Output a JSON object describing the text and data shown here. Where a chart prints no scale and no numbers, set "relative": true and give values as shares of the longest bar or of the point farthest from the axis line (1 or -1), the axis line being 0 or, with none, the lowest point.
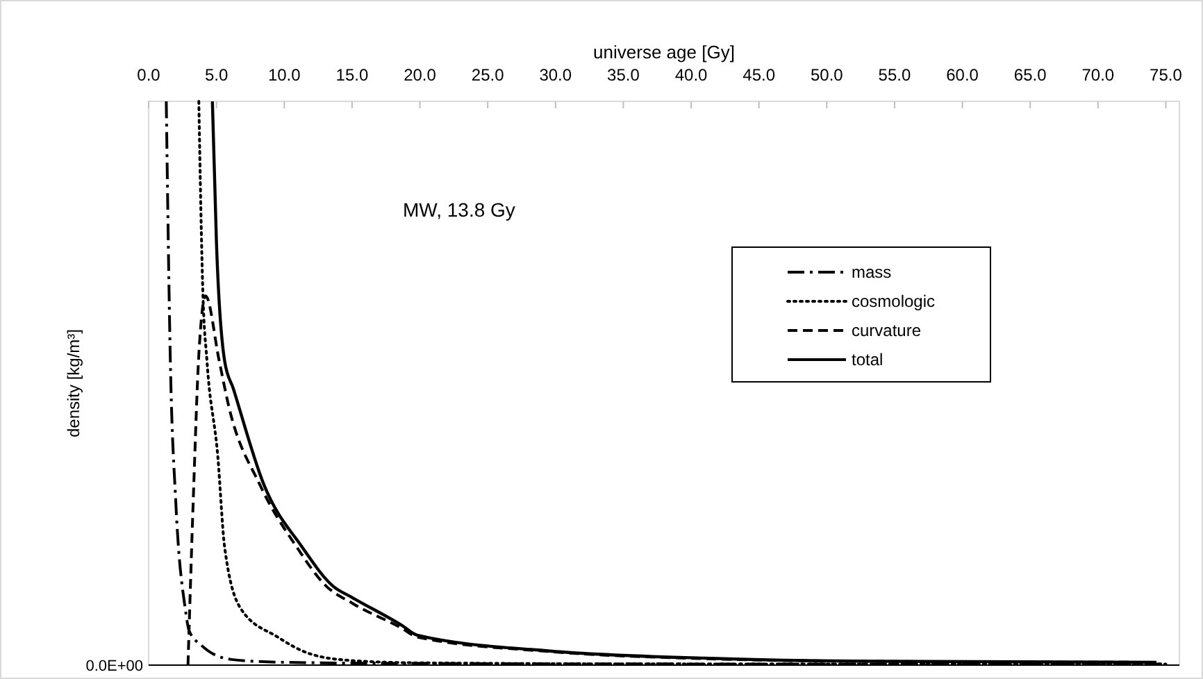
{
  "chart_data": {
    "type": "line",
    "relative": true,
    "xlabel": "universe age [Gy]",
    "ylabel": "density [kg/m³]",
    "xlim": [
      0,
      76
    ],
    "xticks": [
      {
        "value": 0,
        "label": "0.0"
      },
      {
        "value": 5,
        "label": "5.0"
      },
      {
        "value": 10,
        "label": "10.0"
      },
      {
        "value": 15,
        "label": "15.0"
      },
      {
        "value": 20,
        "label": "20.0"
      },
      {
        "value": 25,
        "label": "25.0"
      },
      {
        "value": 30,
        "label": "30.0"
      },
      {
        "value": 35,
        "label": "35.0"
      },
      {
        "value": 40,
        "label": "40.0"
      },
      {
        "value": 45,
        "label": "45.0"
      },
      {
        "value": 50,
        "label": "50.0"
      },
      {
        "value": 55,
        "label": "55.0"
      },
      {
        "value": 60,
        "label": "60.0"
      },
      {
        "value": 65,
        "label": "65.0"
      },
      {
        "value": 70,
        "label": "70.0"
      },
      {
        "value": 75,
        "label": "75.0"
      }
    ],
    "legend": "right",
    "grid": false,
    "marker": "none",
    "annotations": [
      "MW, 13.8 Gy",
      "0.0E+00"
    ],
    "series": [
      {
        "name": "mass",
        "color": "#000000",
        "line_style": "dashdot",
        "x": [
          1.3,
          1.6,
          2.0,
          2.7,
          3.0,
          3.9,
          6.1,
          10,
          20,
          40,
          60,
          75
        ],
        "values": [
          1,
          0.54,
          0.29,
          0.1,
          0.06,
          0.035,
          0.01,
          0.005,
          0.003,
          0.002,
          0.002,
          0.002
        ]
      },
      {
        "name": "cosmologic",
        "color": "#000000",
        "line_style": "dotted",
        "x": [
          3.7,
          4.0,
          4.3,
          5.1,
          5.6,
          6.8,
          9.5,
          11.9,
          15,
          20,
          40,
          75
        ],
        "values": [
          1,
          0.66,
          0.54,
          0.37,
          0.21,
          0.1,
          0.05,
          0.02,
          0.008,
          0.004,
          0.002,
          0.002
        ]
      },
      {
        "name": "curvature",
        "color": "#000000",
        "line_style": "dashed",
        "x": [
          2.9,
          3.3,
          3.7,
          4.2,
          5.2,
          5.9,
          8.2,
          10.9,
          13.1,
          15,
          18.7,
          19.8,
          29.6,
          41.5,
          52,
          74.3
        ],
        "values": [
          0,
          0.3,
          0.55,
          0.655,
          0.54,
          0.46,
          0.32,
          0.21,
          0.14,
          0.11,
          0.065,
          0.05,
          0.024,
          0.011,
          0.007,
          0.005
        ]
      },
      {
        "name": "total",
        "color": "#000000",
        "line_style": "solid",
        "x": [
          4.7,
          5.0,
          5.6,
          6.25,
          8.5,
          11.3,
          13.6,
          15,
          18.7,
          19.8,
          29.6,
          41.5,
          52,
          74.3
        ],
        "values": [
          1,
          0.75,
          0.54,
          0.49,
          0.32,
          0.21,
          0.14,
          0.12,
          0.07,
          0.053,
          0.025,
          0.012,
          0.007,
          0.005
        ]
      }
    ]
  }
}
